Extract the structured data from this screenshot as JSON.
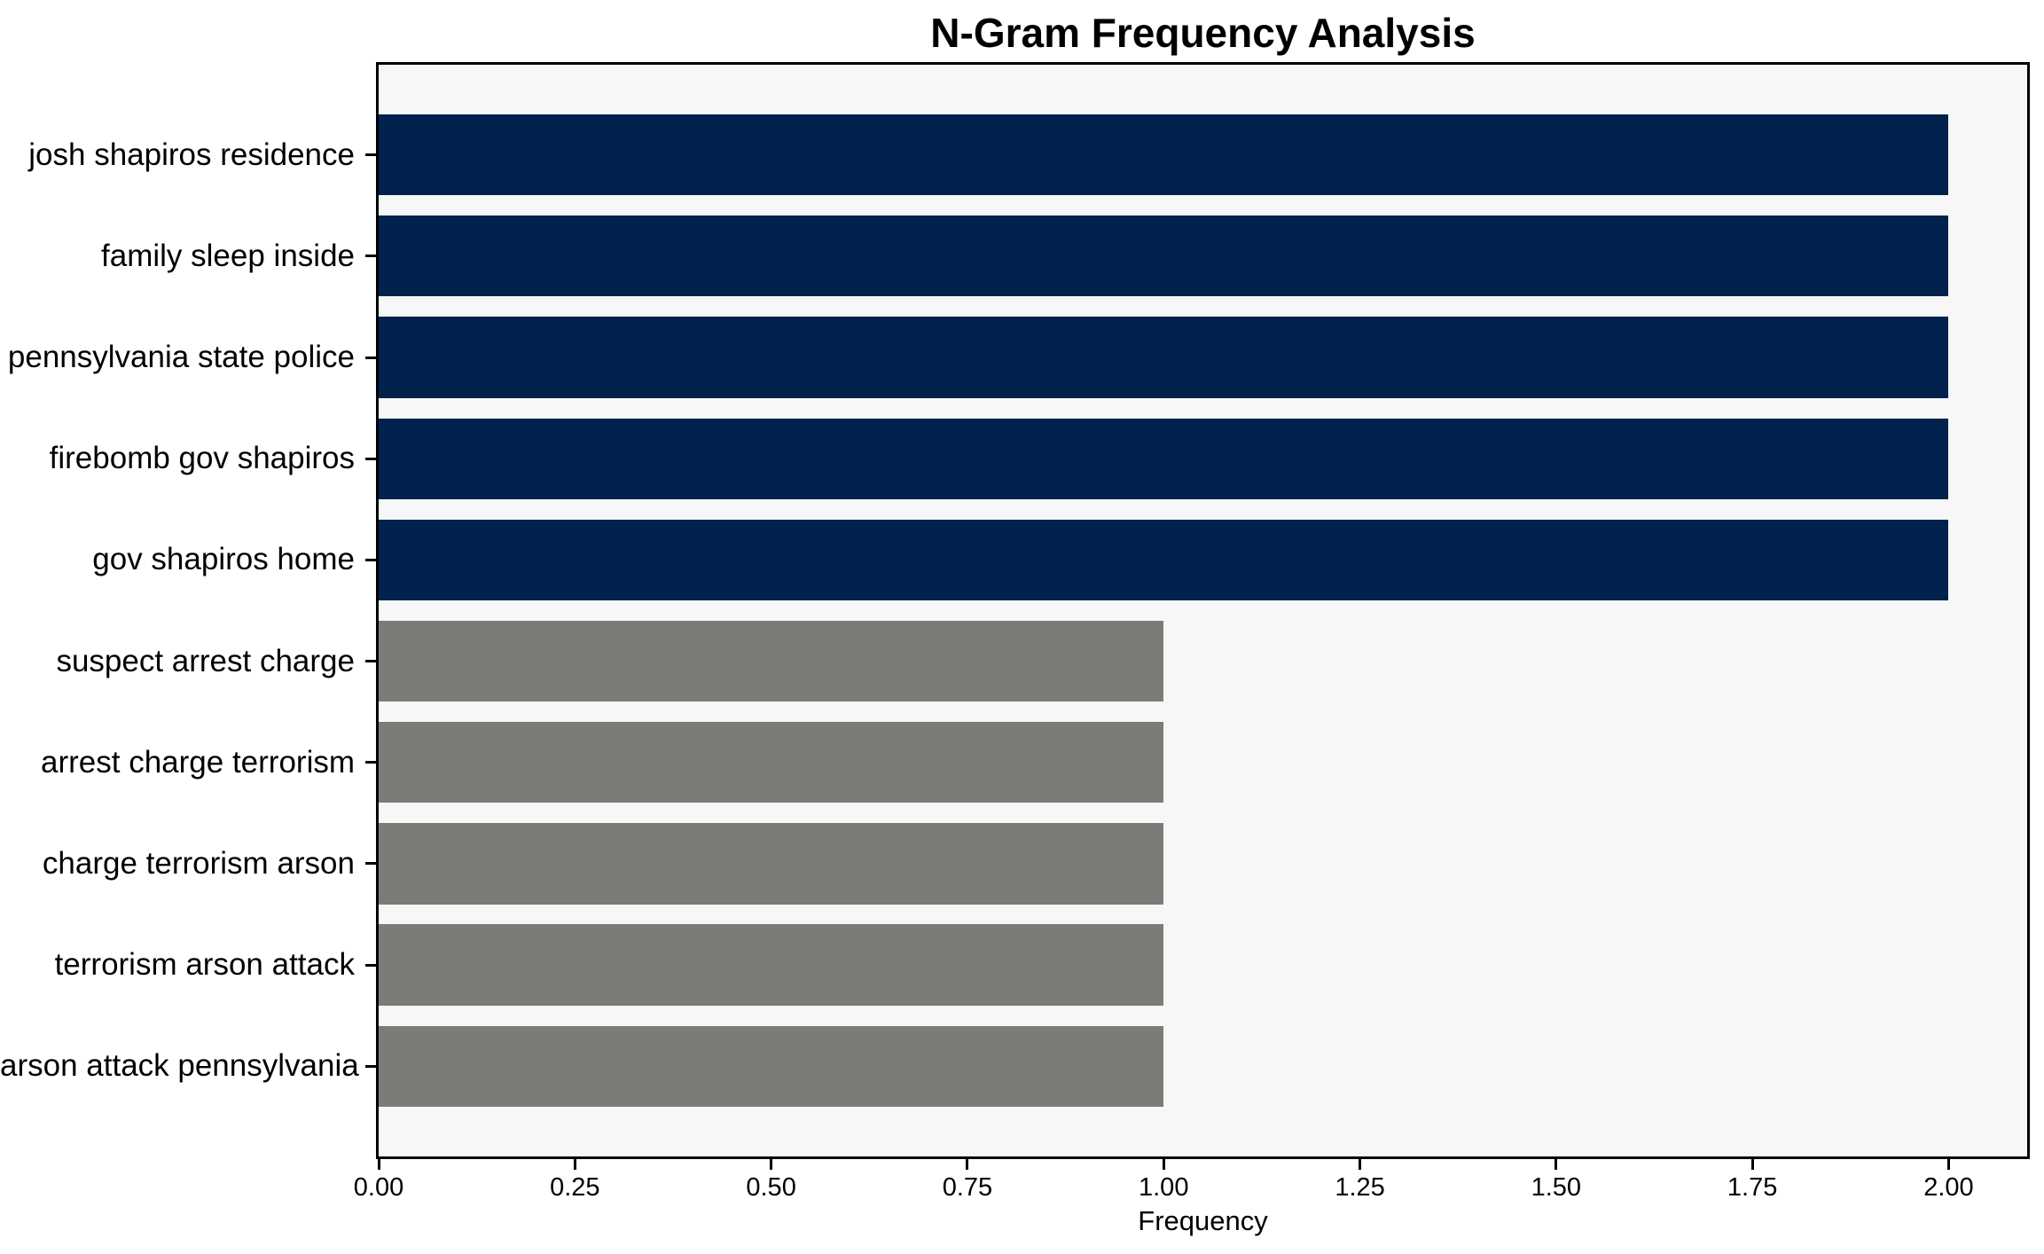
{
  "chart_data": {
    "type": "bar",
    "orientation": "horizontal",
    "title": "N-Gram Frequency Analysis",
    "xlabel": "Frequency",
    "ylabel": "",
    "categories": [
      "josh shapiros residence",
      "family sleep inside",
      "pennsylvania state police",
      "firebomb gov shapiros",
      "gov shapiros home",
      "suspect arrest charge",
      "arrest charge terrorism",
      "charge terrorism arson",
      "terrorism arson attack",
      "arson attack pennsylvania"
    ],
    "values": [
      2,
      2,
      2,
      2,
      2,
      1,
      1,
      1,
      1,
      1
    ],
    "bar_colors": [
      "#02224e",
      "#02224e",
      "#02224e",
      "#02224e",
      "#02224e",
      "#7b7b78",
      "#7b7b78",
      "#7b7b78",
      "#7b7b78",
      "#7b7b78"
    ],
    "xlim": [
      0,
      2.1
    ],
    "x_ticks": [
      0,
      0.25,
      0.5,
      0.75,
      1,
      1.25,
      1.5,
      1.75,
      2
    ],
    "x_tick_labels": [
      "0.00",
      "0.25",
      "0.50",
      "0.75",
      "1.00",
      "1.25",
      "1.50",
      "1.75",
      "2.00"
    ],
    "grid": false,
    "legend": false,
    "plot_background": "#f7f7f7",
    "figure_background": "#ffffff",
    "spine_color": "#000000"
  }
}
